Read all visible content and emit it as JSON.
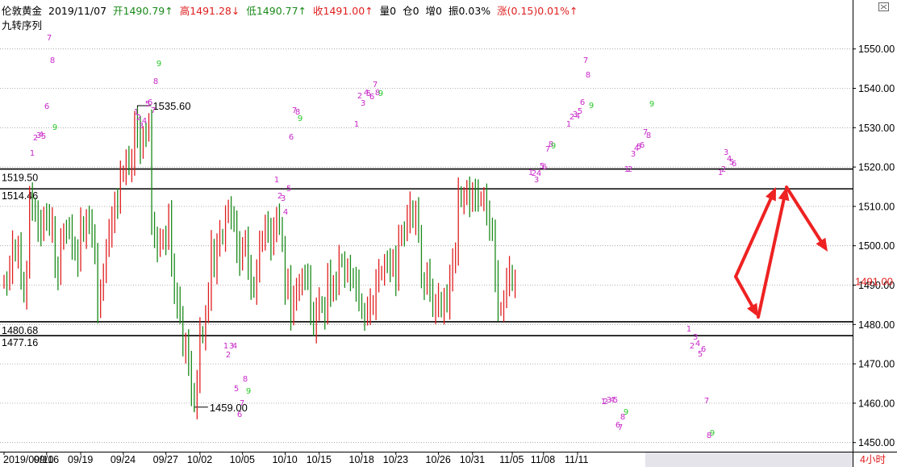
{
  "header": {
    "name": "伦敦黄金",
    "date": "2019/11/07",
    "open": "开1490.79↑",
    "high": "高1491.28↓",
    "low": "低1490.77↑",
    "close": "收1491.00↑",
    "volume": "量0",
    "position": "仓0",
    "increase": "增0",
    "amplitude": "振0.03%",
    "change": "涨(0.15)0.01%↑"
  },
  "indicator_label": "九转序列",
  "period_label": "4小时",
  "colors": {
    "up": "#e01e1e",
    "down": "#1a8a1a",
    "td_up": "#c828c8",
    "td_down": "#28c828",
    "arrow": "#ee2222",
    "price": "#e01e1e",
    "header_green": "#1a8a1a"
  },
  "chart_data": {
    "type": "candlestick",
    "symbol": "伦敦黄金",
    "timeframe": "4小时",
    "ylim": [
      1448,
      1558
    ],
    "yticks": [
      1450.0,
      1460.0,
      1470.0,
      1480.0,
      1490.0,
      1500.0,
      1510.0,
      1520.0,
      1530.0,
      1540.0,
      1550.0
    ],
    "x_tick_labels": [
      "2019/09/10",
      "09/16",
      "09/19",
      "09/24",
      "09/27",
      "10/02",
      "10/05",
      "10/10",
      "10/15",
      "10/18",
      "10/23",
      "10/26",
      "10/31",
      "11/05",
      "11/08",
      "11/11"
    ],
    "x_tick_bar_index": [
      0,
      15,
      27,
      42,
      57,
      69,
      84,
      99,
      111,
      126,
      138,
      153,
      165,
      179,
      190,
      202
    ],
    "current_price": "1491.00",
    "horizontal_levels": [
      {
        "value": 1519.5,
        "label": "1519.50"
      },
      {
        "value": 1514.46,
        "label": "1514.46"
      },
      {
        "value": 1480.68,
        "label": "1480.68"
      },
      {
        "value": 1477.16,
        "label": "1477.16"
      }
    ],
    "annotations": [
      {
        "value": 1535.6,
        "label": "1535.60",
        "bar": 47
      },
      {
        "value": 1459.0,
        "label": "1459.00",
        "bar": 67
      }
    ],
    "closes": [
      1491.0,
      1490.7,
      1494.1,
      1499.6,
      1498.5,
      1499.6,
      1491.8,
      1487.2,
      1493.7,
      1511.8,
      1510.2,
      1508.6,
      1505.3,
      1502.8,
      1508.3,
      1507.2,
      1504.6,
      1505.5,
      1494.3,
      1493.0,
      1500.6,
      1504.1,
      1503.9,
      1503.7,
      1500.3,
      1498.7,
      1496.4,
      1505.9,
      1502.6,
      1506.8,
      1505.0,
      1503.4,
      1497.8,
      1484.6,
      1487.6,
      1493.9,
      1499.2,
      1503.4,
      1505.7,
      1511.7,
      1511.1,
      1517.8,
      1518.8,
      1522.0,
      1520.0,
      1520.3,
      1532.2,
      1529.1,
      1523.7,
      1528.8,
      1528.5,
      1530.3,
      1506.6,
      1501.9,
      1500.1,
      1500.6,
      1502.6,
      1501.0,
      1507.3,
      1496.0,
      1487.7,
      1485.8,
      1483.1,
      1473.5,
      1475.4,
      1469.0,
      1463.1,
      1460.2,
      1465.5,
      1478.0,
      1476.8,
      1482.4,
      1487.3,
      1499.7,
      1494.5,
      1500.2,
      1502.7,
      1501.9,
      1507.8,
      1508.3,
      1508.0,
      1506.0,
      1499.9,
      1495.3,
      1500.6,
      1501.5,
      1493.4,
      1490.1,
      1489.3,
      1493.6,
      1500.0,
      1502.2,
      1505.4,
      1502.8,
      1500.1,
      1505.2,
      1506.9,
      1505.7,
      1500.0,
      1488.4,
      1490.8,
      1482.3,
      1487.8,
      1488.9,
      1489.0,
      1492.7,
      1492.1,
      1490.8,
      1483.7,
      1479.5,
      1483.9,
      1485.6,
      1484.5,
      1482.1,
      1492.2,
      1488.3,
      1490.5,
      1490.4,
      1496.4,
      1496.1,
      1492.7,
      1493.4,
      1492.3,
      1491.7,
      1490.1,
      1486.3,
      1483.0,
      1481.8,
      1483.7,
      1484.9,
      1485.4,
      1491.1,
      1492.8,
      1493.3,
      1495.4,
      1495.1,
      1494.6,
      1497.1,
      1491.5,
      1501.5,
      1503.7,
      1503.2,
      1507.0,
      1509.5,
      1507.0,
      1508.5,
      1503.7,
      1490.8,
      1489.6,
      1492.4,
      1489.6,
      1484.4,
      1484.8,
      1486.7,
      1483.4,
      1486.8,
      1485.1,
      1490.9,
      1497.3,
      1497.9,
      1513.5,
      1511.4,
      1512.4,
      1513.3,
      1511.1,
      1514.1,
      1513.0,
      1511.6,
      1512.2,
      1512.4,
      1507.2,
      1505.1,
      1503.7,
      1492.5,
      1483.8,
      1484.1,
      1486.2,
      1491.0,
      1493.1,
      1491.0,
      1491.0
    ]
  },
  "td_sequence": [
    {
      "t": "1",
      "x": 40,
      "y": 193,
      "c": "up"
    },
    {
      "t": "2",
      "x": 44,
      "y": 174,
      "c": "up"
    },
    {
      "t": "3",
      "x": 48,
      "y": 171,
      "c": "up"
    },
    {
      "t": "4",
      "x": 51,
      "y": 170,
      "c": "up"
    },
    {
      "t": "5",
      "x": 54,
      "y": 172,
      "c": "up"
    },
    {
      "t": "6",
      "x": 58,
      "y": 135,
      "c": "up"
    },
    {
      "t": "7",
      "x": 61,
      "y": 50,
      "c": "up"
    },
    {
      "t": "8",
      "x": 65,
      "y": 78,
      "c": "up"
    },
    {
      "t": "9",
      "x": 68,
      "y": 161,
      "c": "down"
    },
    {
      "t": "1",
      "x": 169,
      "y": 142,
      "c": "up"
    },
    {
      "t": "2",
      "x": 172,
      "y": 149,
      "c": "up"
    },
    {
      "t": "3",
      "x": 175,
      "y": 159,
      "c": "up"
    },
    {
      "t": "4",
      "x": 179,
      "y": 153,
      "c": "up"
    },
    {
      "t": "5",
      "x": 183,
      "y": 132,
      "c": "up"
    },
    {
      "t": "6",
      "x": 186,
      "y": 130,
      "c": "up"
    },
    {
      "t": "7",
      "x": 190,
      "y": 140,
      "c": "up"
    },
    {
      "t": "8",
      "x": 193,
      "y": 104,
      "c": "up"
    },
    {
      "t": "9",
      "x": 197,
      "y": 82,
      "c": "down"
    },
    {
      "t": "1",
      "x": 343,
      "y": 226,
      "c": "up"
    },
    {
      "t": "2",
      "x": 347,
      "y": 246,
      "c": "up"
    },
    {
      "t": "3",
      "x": 351,
      "y": 249,
      "c": "up"
    },
    {
      "t": "4",
      "x": 354,
      "y": 266,
      "c": "up"
    },
    {
      "t": "5",
      "x": 358,
      "y": 237,
      "c": "up"
    },
    {
      "t": "6",
      "x": 361,
      "y": 173,
      "c": "up"
    },
    {
      "t": "7",
      "x": 365,
      "y": 140,
      "c": "up"
    },
    {
      "t": "8",
      "x": 369,
      "y": 142,
      "c": "up"
    },
    {
      "t": "9",
      "x": 372,
      "y": 150,
      "c": "down"
    },
    {
      "t": "1",
      "x": 442,
      "y": 157,
      "c": "up"
    },
    {
      "t": "2",
      "x": 446,
      "y": 122,
      "c": "up"
    },
    {
      "t": "3",
      "x": 450,
      "y": 131,
      "c": "up"
    },
    {
      "t": "4",
      "x": 454,
      "y": 118,
      "c": "up"
    },
    {
      "t": "5",
      "x": 457,
      "y": 119,
      "c": "up"
    },
    {
      "t": "6",
      "x": 461,
      "y": 123,
      "c": "up"
    },
    {
      "t": "7",
      "x": 465,
      "y": 108,
      "c": "up"
    },
    {
      "t": "8",
      "x": 468,
      "y": 118,
      "c": "up"
    },
    {
      "t": "9",
      "x": 472,
      "y": 119,
      "c": "down"
    },
    {
      "t": "1",
      "x": 658,
      "y": 217,
      "c": "up"
    },
    {
      "t": "2",
      "x": 662,
      "y": 218,
      "c": "up"
    },
    {
      "t": "3",
      "x": 665,
      "y": 226,
      "c": "up"
    },
    {
      "t": "4",
      "x": 668,
      "y": 218,
      "c": "up"
    },
    {
      "t": "5",
      "x": 672,
      "y": 209,
      "c": "up"
    },
    {
      "t": "6",
      "x": 675,
      "y": 210,
      "c": "up"
    },
    {
      "t": "7",
      "x": 679,
      "y": 188,
      "c": "up"
    },
    {
      "t": "8",
      "x": 683,
      "y": 182,
      "c": "up"
    },
    {
      "t": "9",
      "x": 686,
      "y": 184,
      "c": "down"
    },
    {
      "t": "1",
      "x": 705,
      "y": 157,
      "c": "up"
    },
    {
      "t": "2",
      "x": 709,
      "y": 148,
      "c": "up"
    },
    {
      "t": "3",
      "x": 713,
      "y": 145,
      "c": "up"
    },
    {
      "t": "4",
      "x": 716,
      "y": 147,
      "c": "up"
    },
    {
      "t": "5",
      "x": 719,
      "y": 141,
      "c": "up"
    },
    {
      "t": "6",
      "x": 722,
      "y": 130,
      "c": "up"
    },
    {
      "t": "7",
      "x": 726,
      "y": 78,
      "c": "up"
    },
    {
      "t": "8",
      "x": 729,
      "y": 96,
      "c": "up"
    },
    {
      "t": "9",
      "x": 733,
      "y": 134,
      "c": "down"
    },
    {
      "t": "1",
      "x": 777,
      "y": 213,
      "c": "up"
    },
    {
      "t": "2",
      "x": 781,
      "y": 213,
      "c": "up"
    },
    {
      "t": "3",
      "x": 785,
      "y": 194,
      "c": "up"
    },
    {
      "t": "4",
      "x": 789,
      "y": 187,
      "c": "up"
    },
    {
      "t": "5",
      "x": 792,
      "y": 185,
      "c": "up"
    },
    {
      "t": "6",
      "x": 796,
      "y": 183,
      "c": "up"
    },
    {
      "t": "7",
      "x": 800,
      "y": 167,
      "c": "up"
    },
    {
      "t": "8",
      "x": 804,
      "y": 171,
      "c": "up"
    },
    {
      "t": "9",
      "x": 808,
      "y": 132,
      "c": "down"
    },
    {
      "t": "1",
      "x": 893,
      "y": 217,
      "c": "up"
    },
    {
      "t": "2",
      "x": 897,
      "y": 213,
      "c": "up"
    },
    {
      "t": "3",
      "x": 900,
      "y": 192,
      "c": "up"
    },
    {
      "t": "4",
      "x": 904,
      "y": 200,
      "c": "up"
    },
    {
      "t": "5",
      "x": 907,
      "y": 204,
      "c": "up"
    },
    {
      "t": "6",
      "x": 910,
      "y": 206,
      "c": "up"
    },
    {
      "t": "1",
      "x": 280,
      "y": 432,
      "c": "up"
    },
    {
      "t": "2",
      "x": 283,
      "y": 443,
      "c": "up"
    },
    {
      "t": "3",
      "x": 287,
      "y": 432,
      "c": "up"
    },
    {
      "t": "4",
      "x": 291,
      "y": 432,
      "c": "up"
    },
    {
      "t": "5",
      "x": 293,
      "y": 485,
      "c": "up"
    },
    {
      "t": "6",
      "x": 297,
      "y": 517,
      "c": "up"
    },
    {
      "t": "7",
      "x": 300,
      "y": 503,
      "c": "up"
    },
    {
      "t": "8",
      "x": 304,
      "y": 473,
      "c": "up"
    },
    {
      "t": "9",
      "x": 308,
      "y": 488,
      "c": "down"
    },
    {
      "t": "1",
      "x": 748,
      "y": 501,
      "c": "up"
    },
    {
      "t": "2",
      "x": 751,
      "y": 501,
      "c": "up"
    },
    {
      "t": "3",
      "x": 755,
      "y": 499,
      "c": "up"
    },
    {
      "t": "4",
      "x": 759,
      "y": 499,
      "c": "up"
    },
    {
      "t": "5",
      "x": 763,
      "y": 499,
      "c": "up"
    },
    {
      "t": "6",
      "x": 766,
      "y": 530,
      "c": "up"
    },
    {
      "t": "7",
      "x": 769,
      "y": 533,
      "c": "up"
    },
    {
      "t": "8",
      "x": 772,
      "y": 520,
      "c": "up"
    },
    {
      "t": "9",
      "x": 776,
      "y": 514,
      "c": "down"
    },
    {
      "t": "1",
      "x": 854,
      "y": 411,
      "c": "up"
    },
    {
      "t": "2",
      "x": 858,
      "y": 432,
      "c": "up"
    },
    {
      "t": "3",
      "x": 862,
      "y": 421,
      "c": "up"
    },
    {
      "t": "4",
      "x": 865,
      "y": 429,
      "c": "up"
    },
    {
      "t": "5",
      "x": 868,
      "y": 442,
      "c": "up"
    },
    {
      "t": "6",
      "x": 872,
      "y": 436,
      "c": "up"
    },
    {
      "t": "7",
      "x": 876,
      "y": 500,
      "c": "up"
    },
    {
      "t": "8",
      "x": 879,
      "y": 543,
      "c": "up"
    },
    {
      "t": "9",
      "x": 883,
      "y": 540,
      "c": "down"
    }
  ]
}
